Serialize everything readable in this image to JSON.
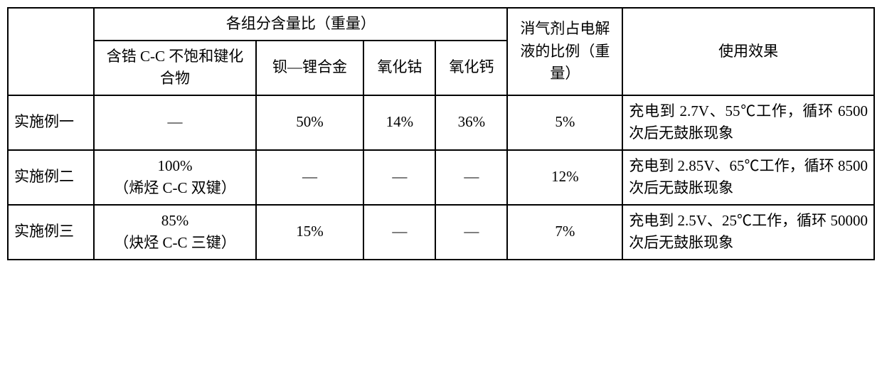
{
  "headers": {
    "group_components": "各组分含量比（重量）",
    "comp1": "含锆 C-C 不饱和键化合物",
    "comp2": "钡—锂合金",
    "comp3": "氧化钴",
    "comp4": "氧化钙",
    "ratio": "消气剂占电解液的比例（重量）",
    "effect": "使用效果"
  },
  "rows": [
    {
      "label": "实施例一",
      "comp1": "—",
      "comp2": "50%",
      "comp3": "14%",
      "comp4": "36%",
      "ratio": "5%",
      "effect": "充电到 2.7V、55℃工作，循环 6500 次后无鼓胀现象"
    },
    {
      "label": "实施例二",
      "comp1": "100%\n（烯烃 C-C 双键）",
      "comp2": "—",
      "comp3": "—",
      "comp4": "—",
      "ratio": "12%",
      "effect": "充电到 2.85V、65℃工作，循环 8500 次后无鼓胀现象"
    },
    {
      "label": "实施例三",
      "comp1": "85%\n（炔烃 C-C 三键）",
      "comp2": "15%",
      "comp3": "—",
      "comp4": "—",
      "ratio": "7%",
      "effect": "充电到 2.5V、25℃工作，循环 50000 次后无鼓胀现象"
    }
  ],
  "style": {
    "border_color": "#000000",
    "background_color": "#ffffff",
    "font_size": 21,
    "font_family": "SimSun"
  }
}
